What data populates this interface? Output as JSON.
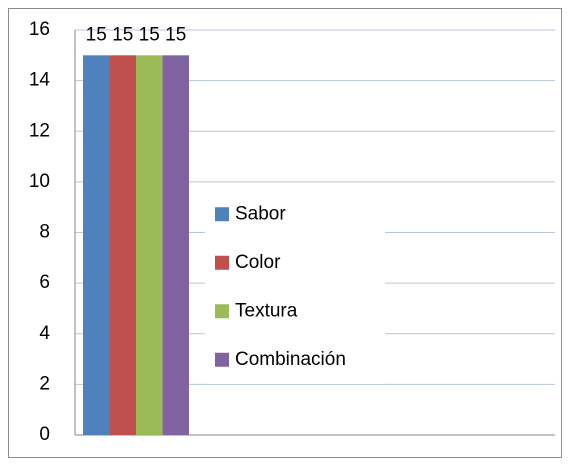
{
  "chart_data": {
    "type": "bar",
    "categories": [
      null
    ],
    "series": [
      {
        "name": "Sabor",
        "color": "#4f81bd",
        "values": [
          15
        ]
      },
      {
        "name": "Color",
        "color": "#c0504d",
        "values": [
          15
        ]
      },
      {
        "name": "Textura",
        "color": "#9bbb59",
        "values": [
          15
        ]
      },
      {
        "name": "Combinación",
        "color": "#8064a2",
        "values": [
          15
        ]
      }
    ],
    "ylim": [
      0,
      16
    ],
    "yticks": [
      0,
      2,
      4,
      6,
      8,
      10,
      12,
      14,
      16
    ],
    "grid": true,
    "legend": "center",
    "data_labels": true
  }
}
